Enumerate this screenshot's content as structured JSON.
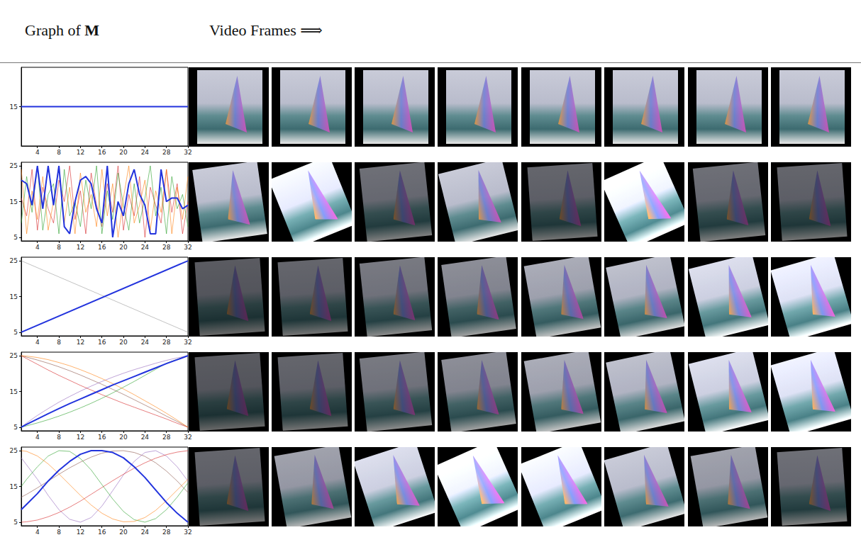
{
  "header": {
    "graph_label": "Graph of",
    "matrix_symbol": "M",
    "frames_label": "Video Frames ⟹"
  },
  "chart_data": [
    {
      "type": "line",
      "grid": false,
      "marker": "none",
      "line_style": "solid",
      "xlim": [
        1,
        32
      ],
      "xticks": [
        4,
        8,
        12,
        16,
        20,
        24,
        28,
        32
      ],
      "ylim": [
        14.95,
        15.05
      ],
      "yticks": [
        15
      ],
      "x": [
        1,
        32
      ],
      "series": [
        {
          "color": "#2233dd",
          "values": [
            15,
            15
          ]
        }
      ]
    },
    {
      "type": "line",
      "grid": false,
      "marker": "none",
      "line_style": "solid",
      "xlim": [
        1,
        32
      ],
      "xticks": [
        4,
        8,
        12,
        16,
        20,
        24,
        28,
        32
      ],
      "ylim": [
        4,
        26
      ],
      "yticks": [
        5,
        15,
        25
      ],
      "x": [
        1,
        2,
        3,
        4,
        5,
        6,
        7,
        8,
        9,
        10,
        11,
        12,
        13,
        14,
        15,
        16,
        17,
        18,
        19,
        20,
        21,
        22,
        23,
        24,
        25,
        26,
        27,
        28,
        29,
        30,
        31,
        32
      ],
      "series": [
        {
          "color": "#2233dd",
          "values": [
            21,
            20,
            14,
            25,
            13,
            25,
            14,
            25,
            8,
            6,
            15,
            21,
            22,
            20,
            13,
            9,
            25,
            5,
            15,
            11,
            20,
            24,
            17,
            14,
            6,
            6,
            24,
            15,
            16,
            16,
            13,
            14
          ]
        },
        {
          "color": "#ff7f0e",
          "values": [
            24,
            6,
            18,
            10,
            22,
            7,
            15,
            25,
            9,
            19,
            6,
            23,
            12,
            17,
            8,
            24,
            11,
            20,
            5,
            16,
            25,
            9,
            14,
            21,
            7,
            18,
            12,
            24,
            6,
            19,
            10,
            22
          ]
        },
        {
          "color": "#2ca02c",
          "values": [
            9,
            22,
            12,
            25,
            7,
            17,
            20,
            6,
            24,
            11,
            15,
            8,
            21,
            13,
            25,
            6,
            18,
            10,
            23,
            14,
            7,
            20,
            9,
            16,
            25,
            11,
            19,
            6,
            22,
            13,
            17,
            8
          ]
        },
        {
          "color": "#d62728",
          "values": [
            16,
            11,
            24,
            7,
            19,
            13,
            9,
            21,
            15,
            25,
            10,
            18,
            6,
            23,
            14,
            8,
            20,
            12,
            25,
            7,
            17,
            11,
            22,
            5,
            19,
            14,
            9,
            24,
            12,
            20,
            6,
            15
          ]
        }
      ]
    },
    {
      "type": "line",
      "grid": false,
      "marker": "none",
      "line_style": "solid",
      "xlim": [
        1,
        32
      ],
      "xticks": [
        4,
        8,
        12,
        16,
        20,
        24,
        28,
        32
      ],
      "ylim": [
        4,
        26
      ],
      "yticks": [
        5,
        15,
        25
      ],
      "x": [
        1,
        32
      ],
      "series": [
        {
          "color": "#2233dd",
          "values": [
            5,
            25
          ]
        },
        {
          "color": "#999999",
          "values": [
            25,
            5
          ]
        }
      ]
    },
    {
      "type": "line",
      "grid": false,
      "marker": "none",
      "line_style": "solid",
      "xlim": [
        1,
        32
      ],
      "xticks": [
        4,
        8,
        12,
        16,
        20,
        24,
        28,
        32
      ],
      "ylim": [
        4,
        26
      ],
      "yticks": [
        5,
        15,
        25
      ],
      "x": [
        1,
        2,
        4,
        6,
        8,
        10,
        12,
        14,
        16,
        18,
        20,
        22,
        24,
        26,
        28,
        30,
        32
      ],
      "series": [
        {
          "color": "#2233dd",
          "values": [
            5,
            5.8,
            7.3,
            8.8,
            10.2,
            11.6,
            12.9,
            14.2,
            15.5,
            16.8,
            18,
            19.2,
            20.4,
            21.6,
            22.8,
            23.9,
            25
          ]
        },
        {
          "color": "#ff7f0e",
          "values": [
            25,
            24.9,
            24.5,
            23.9,
            23.1,
            22.2,
            21.1,
            19.9,
            18.6,
            17.2,
            15.7,
            14.1,
            12.4,
            10.7,
            8.9,
            7,
            5
          ]
        },
        {
          "color": "#2ca02c",
          "values": [
            5,
            5.4,
            6.2,
            7.1,
            8.1,
            9.2,
            10.4,
            11.7,
            13.1,
            14.6,
            16.2,
            17.8,
            19.5,
            21.2,
            22.9,
            24,
            25
          ]
        },
        {
          "color": "#d62728",
          "values": [
            25,
            24.2,
            22.6,
            21,
            19.5,
            18.1,
            16.7,
            15.4,
            14.1,
            12.9,
            11.7,
            10.6,
            9.5,
            8.4,
            7.3,
            6.1,
            5
          ]
        },
        {
          "color": "#9467bd",
          "values": [
            5,
            6.2,
            8.3,
            10.2,
            12,
            13.6,
            15.1,
            16.5,
            17.8,
            19,
            20.1,
            21.1,
            22,
            22.9,
            23.7,
            24.4,
            25
          ]
        },
        {
          "color": "#8c564b",
          "values": [
            25,
            24.6,
            23.8,
            22.9,
            21.9,
            20.8,
            19.6,
            18.3,
            17,
            15.6,
            14.2,
            12.7,
            11.2,
            9.7,
            8.1,
            6.6,
            5
          ]
        }
      ]
    },
    {
      "type": "line",
      "grid": false,
      "marker": "none",
      "line_style": "solid",
      "xlim": [
        1,
        32
      ],
      "xticks": [
        4,
        8,
        12,
        16,
        20,
        24,
        28,
        32
      ],
      "ylim": [
        4,
        26
      ],
      "yticks": [
        5,
        15,
        25
      ],
      "x": [
        1,
        2,
        4,
        6,
        8,
        10,
        12,
        14,
        16,
        18,
        20,
        22,
        24,
        26,
        28,
        30,
        32
      ],
      "series": [
        {
          "color": "#2233dd",
          "values": [
            8.5,
            10,
            13,
            16.5,
            19.5,
            22,
            24,
            25,
            25,
            24.5,
            23,
            20.5,
            17.5,
            14,
            10.5,
            7.5,
            5
          ]
        },
        {
          "color": "#ff7f0e",
          "values": [
            25,
            24.8,
            23.5,
            21.3,
            18.5,
            15.5,
            12.5,
            9.8,
            7.5,
            5.9,
            5.1,
            5.2,
            6.3,
            8.3,
            11,
            14,
            17
          ]
        },
        {
          "color": "#2ca02c",
          "values": [
            15,
            17,
            20.5,
            23.5,
            25,
            24.8,
            22.8,
            19.6,
            15.5,
            11.5,
            8,
            5.7,
            5,
            6,
            8.5,
            12,
            16
          ]
        },
        {
          "color": "#d62728",
          "values": [
            5,
            5.1,
            5.6,
            6.5,
            7.7,
            9.2,
            10.9,
            12.8,
            14.7,
            16.6,
            18.4,
            20.1,
            21.6,
            22.9,
            23.9,
            24.6,
            25
          ]
        },
        {
          "color": "#9467bd",
          "values": [
            23,
            21,
            17,
            12.5,
            8.5,
            5.8,
            5,
            6.3,
            9.5,
            13.8,
            18.2,
            22,
            24.5,
            25,
            23.5,
            20.5,
            16.5
          ]
        },
        {
          "color": "#8c564b",
          "values": [
            12,
            12.8,
            14.6,
            16.5,
            18.4,
            20.2,
            21.8,
            23.2,
            24.3,
            24.9,
            25,
            24.5,
            23.4,
            21.6,
            19.3,
            16.5,
            13.3
          ]
        }
      ]
    }
  ]
}
